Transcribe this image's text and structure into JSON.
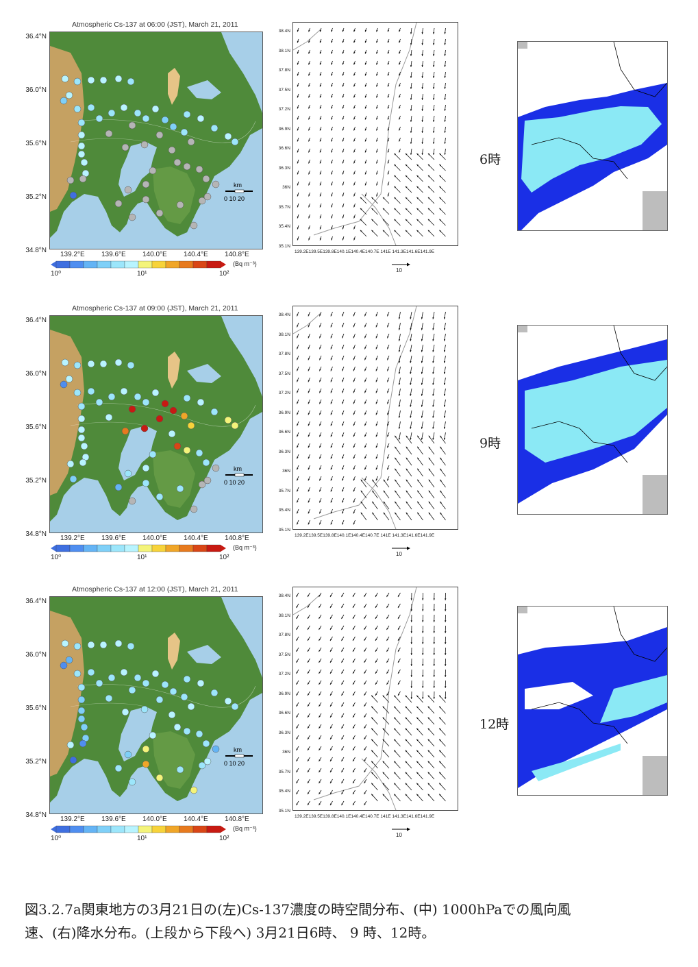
{
  "panels": [
    {
      "title": "Atmospheric Cs-137 at 06:00 (JST), March 21, 2011",
      "hour_label": "6時"
    },
    {
      "title": "Atmospheric Cs-137 at 09:00 (JST), March 21, 2011",
      "hour_label": "9時"
    },
    {
      "title": "Atmospheric Cs-137 at 12:00 (JST), March 21, 2011",
      "hour_label": "12時"
    }
  ],
  "map_axes": {
    "lat_labels": [
      "36.4°N",
      "36.0°N",
      "35.6°N",
      "35.2°N",
      "34.8°N"
    ],
    "lon_labels": [
      "139.2°E",
      "139.6°E",
      "140.0°E",
      "140.4°E",
      "140.8°E"
    ]
  },
  "scale_bar": {
    "unit": "km",
    "ticks": "0  10 20"
  },
  "colorbar": {
    "min_label": "10⁰",
    "mid_label": "10¹",
    "max_label": "10²",
    "unit": "(Bq m⁻³)",
    "colors": [
      "#3f6fe0",
      "#4f8ef0",
      "#64b4f5",
      "#7fd0f8",
      "#9ce6fb",
      "#b8f4ff",
      "#f4f47a",
      "#f7d33a",
      "#f0a628",
      "#e77a1e",
      "#d94616",
      "#c81a12"
    ]
  },
  "wind_axes": {
    "lat_labels": [
      "38.4N",
      "38.1N",
      "37.8N",
      "37.5N",
      "37.2N",
      "36.9N",
      "36.6N",
      "36.3N",
      "36N",
      "35.7N",
      "35.4N",
      "35.1N"
    ],
    "lon_labels": "139.2E139.5E139.8E140.1E140.4E140.7E 141E 141.3E141.6E141.9E",
    "ref_vector": "10"
  },
  "caption": {
    "line1": "図3.2.7a関東地方の3月21日の(左)Cs-137濃度の時空間分布、(中) 1000hPaでの風向風",
    "line2": "速、(右)降水分布。(上段から下段へ) 3月21日6時、 9 時、12時。"
  },
  "colors": {
    "land": "#4f8a3a",
    "sea": "#a7cfe8",
    "mountain": "#d9a46a",
    "rain_light": "#8be9f5",
    "rain_heavy": "#1a2fe6",
    "station_na": "#b5b5b5"
  }
}
